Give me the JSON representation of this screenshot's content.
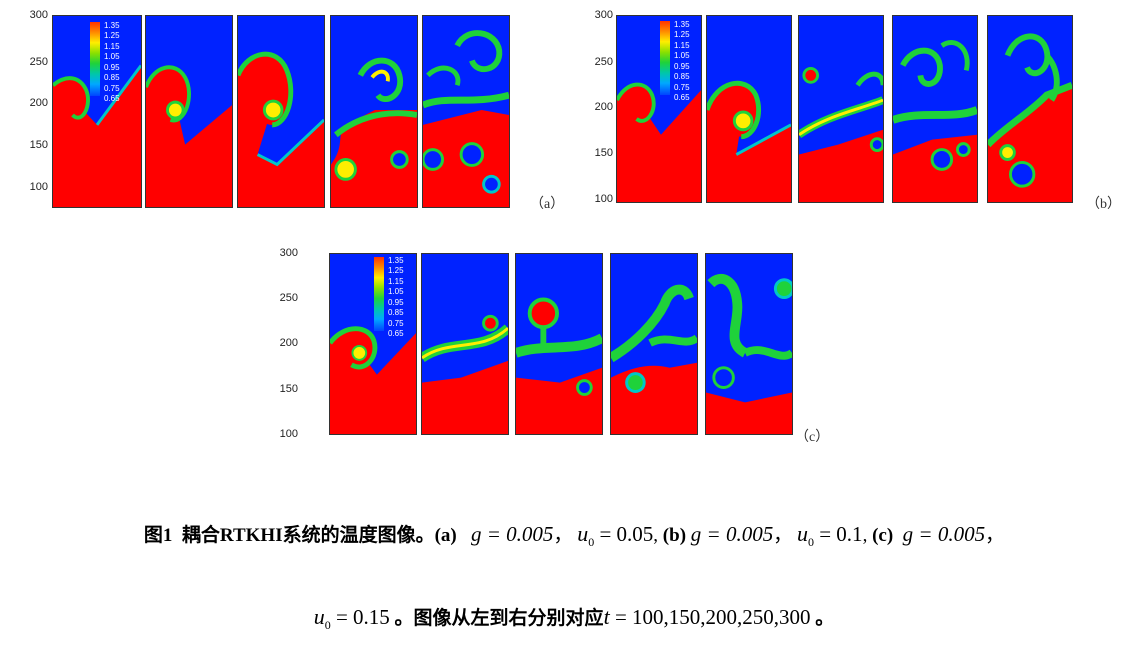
{
  "figure": {
    "y_ticks": [
      "300",
      "250",
      "200",
      "150",
      "100"
    ],
    "legend_values": [
      "1.35",
      "1.25",
      "1.15",
      "1.05",
      "0.95",
      "0.85",
      "0.75",
      "0.65"
    ],
    "colors": {
      "hot": "#ff0000",
      "cold": "#0022ff",
      "yellow": "#ffee00",
      "green": "#1fd23a",
      "cyan": "#00c7c8"
    },
    "subfigures": [
      {
        "label": "（a）"
      },
      {
        "label": "（b）"
      },
      {
        "label": "（c）"
      }
    ]
  },
  "caption": {
    "line1": {
      "fig_no": "图1",
      "title": "耦合RTKHI系统的温度图像。",
      "a_label": "(a)",
      "a_g": "g = 0.005",
      "sep1": "，",
      "a_u": "u",
      "a_u_sub": "0",
      "a_u_val": " = 0.05",
      "comma_b": ",",
      "b_label": "(b)",
      "b_g": "g = 0.005",
      "sep2": "，",
      "b_u": "u",
      "b_u_sub": "0",
      "b_u_val": " = 0.1",
      "comma_c": ",",
      "c_label": "(c)",
      "c_g": "g = 0.005",
      "sep3": "，"
    },
    "line2": {
      "c_u": "u",
      "c_u_sub": "0",
      "c_u_val": " = 0.15",
      "text1": " 。图像从左到右分别对应",
      "t": "t",
      "t_val": " = 100,150,200,250,300",
      "end": " 。"
    }
  }
}
